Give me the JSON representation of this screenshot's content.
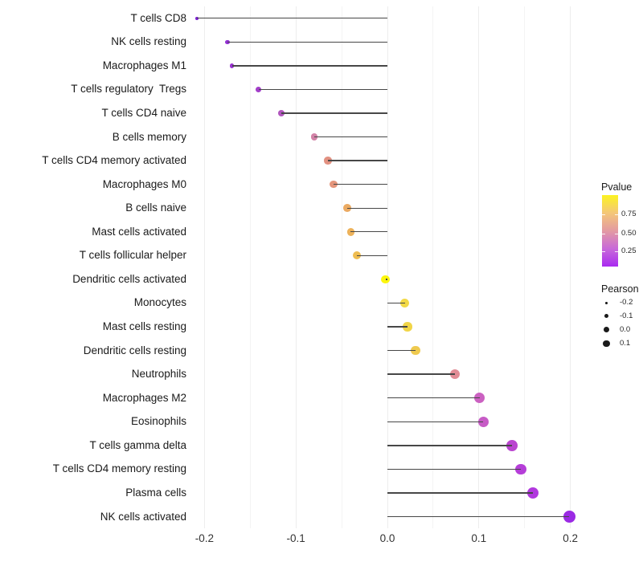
{
  "chart_data": {
    "type": "lollipop",
    "title": "",
    "xlabel": "",
    "ylabel": "",
    "grid": true,
    "x_range": [
      -0.225,
      0.22
    ],
    "x_axis": {
      "ticks": [
        {
          "label": "-0.2",
          "value": -0.2
        },
        {
          "label": "-0.1",
          "value": -0.1
        },
        {
          "label": "0.0",
          "value": 0.0
        },
        {
          "label": "0.1",
          "value": 0.1
        },
        {
          "label": "0.2",
          "value": 0.2
        }
      ],
      "minor_gridlines": [
        -0.15,
        -0.05,
        0.05,
        0.15
      ]
    },
    "rows": [
      {
        "label": "T cells CD8",
        "pearson": -0.208,
        "color": "#7d1fd6"
      },
      {
        "label": "NK cells resting",
        "pearson": -0.175,
        "color": "#9330d4"
      },
      {
        "label": "Macrophages M1",
        "pearson": -0.17,
        "color": "#9933d0"
      },
      {
        "label": "T cells regulatory  Tregs",
        "pearson": -0.141,
        "color": "#a33fca"
      },
      {
        "label": "T cells CD4 naive",
        "pearson": -0.116,
        "color": "#b156be"
      },
      {
        "label": "B cells memory",
        "pearson": -0.08,
        "color": "#d282a7"
      },
      {
        "label": "T cells CD4 memory activated",
        "pearson": -0.065,
        "color": "#e29181"
      },
      {
        "label": "Macrophages M0",
        "pearson": -0.059,
        "color": "#e4957b"
      },
      {
        "label": "B cells naive",
        "pearson": -0.044,
        "color": "#ebaa62"
      },
      {
        "label": "Mast cells activated",
        "pearson": -0.04,
        "color": "#edb25a"
      },
      {
        "label": "T cells follicular helper",
        "pearson": -0.033,
        "color": "#efbd51"
      },
      {
        "label": "Dendritic cells activated",
        "pearson": -0.002,
        "color": "#fcf60d"
      },
      {
        "label": "Monocytes",
        "pearson": 0.019,
        "color": "#f2d946"
      },
      {
        "label": "Mast cells resting",
        "pearson": 0.022,
        "color": "#f1d548"
      },
      {
        "label": "Dendritic cells resting",
        "pearson": 0.031,
        "color": "#efca4f"
      },
      {
        "label": "Neutrophils",
        "pearson": 0.074,
        "color": "#e18c95"
      },
      {
        "label": "Macrophages M2",
        "pearson": 0.101,
        "color": "#cb61c1"
      },
      {
        "label": "Eosinophils",
        "pearson": 0.105,
        "color": "#c75bc6"
      },
      {
        "label": "T cells gamma delta",
        "pearson": 0.136,
        "color": "#ba45d0"
      },
      {
        "label": "T cells CD4 memory resting",
        "pearson": 0.146,
        "color": "#b53ed8"
      },
      {
        "label": "Plasma cells",
        "pearson": 0.159,
        "color": "#b138de"
      },
      {
        "label": "NK cells activated",
        "pearson": 0.199,
        "color": "#9b2ae4"
      }
    ],
    "legend_pvalue": {
      "title": "Pvalue",
      "ticks": [
        "0.75",
        "0.50",
        "0.25"
      ],
      "gradient_top_to_bottom": [
        "#fcf321",
        "#f4c678",
        "#e39aa2",
        "#c869d9",
        "#a92af0"
      ]
    },
    "legend_pearson": {
      "title": "Pearson",
      "items": [
        {
          "label": "-0.2"
        },
        {
          "label": "-0.1"
        },
        {
          "label": "0.0"
        },
        {
          "label": "0.1"
        }
      ]
    }
  }
}
